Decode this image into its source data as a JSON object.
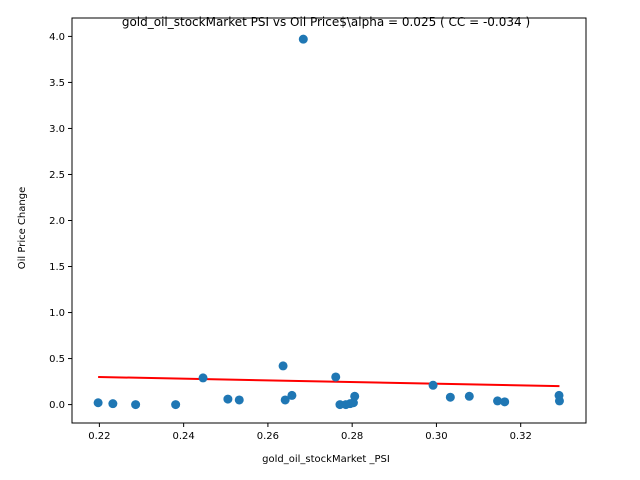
{
  "chart_data": {
    "type": "scatter",
    "title": "gold_oil_stockMarket  PSI vs Oil Price$\\alpha = 0.025 ( CC = -0.034 )",
    "xlabel": "gold_oil_stockMarket _PSI",
    "ylabel": "Oil Price Change",
    "xlim": [
      0.2135,
      0.3355
    ],
    "ylim": [
      -0.2,
      4.2
    ],
    "xticks": [
      0.22,
      0.24,
      0.26,
      0.28,
      0.3,
      0.32
    ],
    "xtick_labels": [
      "0.22",
      "0.24",
      "0.26",
      "0.28",
      "0.30",
      "0.32"
    ],
    "yticks": [
      0.0,
      0.5,
      1.0,
      1.5,
      2.0,
      2.5,
      3.0,
      3.5,
      4.0
    ],
    "ytick_labels": [
      "0.0",
      "0.5",
      "1.0",
      "1.5",
      "2.0",
      "2.5",
      "3.0",
      "3.5",
      "4.0"
    ],
    "grid": false,
    "point_color": "#1f77b4",
    "line_color": "#ff0000",
    "points": [
      {
        "x": 0.2197,
        "y": 0.02
      },
      {
        "x": 0.2232,
        "y": 0.01
      },
      {
        "x": 0.2286,
        "y": 0.0
      },
      {
        "x": 0.2381,
        "y": 0.0
      },
      {
        "x": 0.2446,
        "y": 0.29
      },
      {
        "x": 0.2505,
        "y": 0.06
      },
      {
        "x": 0.2532,
        "y": 0.05
      },
      {
        "x": 0.2636,
        "y": 0.42
      },
      {
        "x": 0.2641,
        "y": 0.05
      },
      {
        "x": 0.2657,
        "y": 0.1
      },
      {
        "x": 0.2684,
        "y": 3.97
      },
      {
        "x": 0.2761,
        "y": 0.3
      },
      {
        "x": 0.2771,
        "y": 0.0
      },
      {
        "x": 0.2785,
        "y": 0.0
      },
      {
        "x": 0.2795,
        "y": 0.01
      },
      {
        "x": 0.2803,
        "y": 0.02
      },
      {
        "x": 0.2806,
        "y": 0.09
      },
      {
        "x": 0.2992,
        "y": 0.21
      },
      {
        "x": 0.3033,
        "y": 0.08
      },
      {
        "x": 0.3078,
        "y": 0.09
      },
      {
        "x": 0.3145,
        "y": 0.04
      },
      {
        "x": 0.3162,
        "y": 0.03
      },
      {
        "x": 0.3291,
        "y": 0.1
      },
      {
        "x": 0.3292,
        "y": 0.04
      }
    ],
    "fit_line": {
      "x": [
        0.2197,
        0.3292
      ],
      "y": [
        0.3,
        0.2
      ]
    }
  }
}
